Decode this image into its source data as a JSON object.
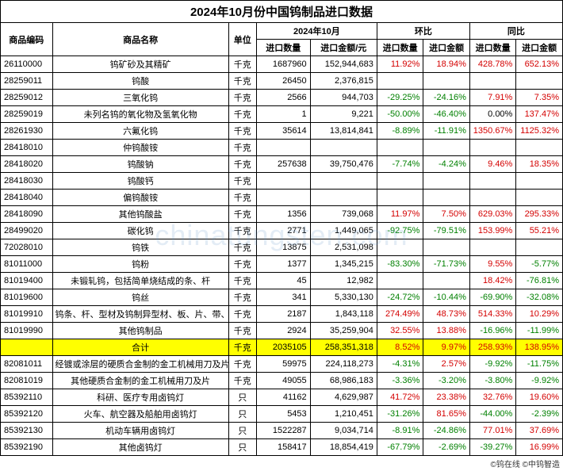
{
  "title": "2024年10月份中国钨制品进口数据",
  "watermark": "chinatungsten.com",
  "footer": "©钨在线 ©中钨智造",
  "headers": {
    "code": "商品编码",
    "name": "商品名称",
    "unit": "单位",
    "month": "2024年10月",
    "mom": "环比",
    "yoy": "同比",
    "qty": "进口数量",
    "amt": "进口金额/元",
    "qty2": "进口数量",
    "amt2": "进口金额",
    "qty3": "进口数量",
    "amt3": "进口金额"
  },
  "rows": [
    {
      "code": "26110000",
      "name": "钨矿砂及其精矿",
      "unit": "千克",
      "qty": "1687960",
      "amt": "152,944,683",
      "mq": "11.92%",
      "ma": "18.94%",
      "yq": "428.78%",
      "ya": "652.13%",
      "mqc": "red",
      "mac": "red",
      "yqc": "red",
      "yac": "red"
    },
    {
      "code": "28259011",
      "name": "钨酸",
      "unit": "千克",
      "qty": "26450",
      "amt": "2,376,815",
      "mq": "",
      "ma": "",
      "yq": "",
      "ya": ""
    },
    {
      "code": "28259012",
      "name": "三氧化钨",
      "unit": "千克",
      "qty": "2566",
      "amt": "944,703",
      "mq": "-29.25%",
      "ma": "-24.16%",
      "yq": "7.91%",
      "ya": "7.35%",
      "mqc": "green",
      "mac": "green",
      "yqc": "red",
      "yac": "red"
    },
    {
      "code": "28259019",
      "name": "未列名钨的氧化物及氢氧化物",
      "unit": "千克",
      "qty": "1",
      "amt": "9,221",
      "mq": "-50.00%",
      "ma": "-46.40%",
      "yq": "0.00%",
      "ya": "137.47%",
      "mqc": "green",
      "mac": "green",
      "yqc": "",
      "yac": "red"
    },
    {
      "code": "28261930",
      "name": "六氟化钨",
      "unit": "千克",
      "qty": "35614",
      "amt": "13,814,841",
      "mq": "-8.89%",
      "ma": "-11.91%",
      "yq": "1350.67%",
      "ya": "1125.32%",
      "mqc": "green",
      "mac": "green",
      "yqc": "red",
      "yac": "red"
    },
    {
      "code": "28418010",
      "name": "仲钨酸铵",
      "unit": "千克",
      "qty": "",
      "amt": "",
      "mq": "",
      "ma": "",
      "yq": "",
      "ya": ""
    },
    {
      "code": "28418020",
      "name": "钨酸钠",
      "unit": "千克",
      "qty": "257638",
      "amt": "39,750,476",
      "mq": "-7.74%",
      "ma": "-4.24%",
      "yq": "9.46%",
      "ya": "18.35%",
      "mqc": "green",
      "mac": "green",
      "yqc": "red",
      "yac": "red"
    },
    {
      "code": "28418030",
      "name": "钨酸钙",
      "unit": "千克",
      "qty": "",
      "amt": "",
      "mq": "",
      "ma": "",
      "yq": "",
      "ya": ""
    },
    {
      "code": "28418040",
      "name": "偏钨酸铵",
      "unit": "千克",
      "qty": "",
      "amt": "",
      "mq": "",
      "ma": "",
      "yq": "",
      "ya": ""
    },
    {
      "code": "28418090",
      "name": "其他钨酸盐",
      "unit": "千克",
      "qty": "1356",
      "amt": "739,068",
      "mq": "11.97%",
      "ma": "7.50%",
      "yq": "629.03%",
      "ya": "295.33%",
      "mqc": "red",
      "mac": "red",
      "yqc": "red",
      "yac": "red"
    },
    {
      "code": "28499020",
      "name": "碳化钨",
      "unit": "千克",
      "qty": "2771",
      "amt": "1,449,065",
      "mq": "-92.75%",
      "ma": "-79.51%",
      "yq": "153.99%",
      "ya": "55.21%",
      "mqc": "green",
      "mac": "green",
      "yqc": "red",
      "yac": "red"
    },
    {
      "code": "72028010",
      "name": "钨铁",
      "unit": "千克",
      "qty": "13875",
      "amt": "2,531,098",
      "mq": "",
      "ma": "",
      "yq": "",
      "ya": ""
    },
    {
      "code": "81011000",
      "name": "钨粉",
      "unit": "千克",
      "qty": "1377",
      "amt": "1,345,215",
      "mq": "-83.30%",
      "ma": "-71.73%",
      "yq": "9.55%",
      "ya": "-5.77%",
      "mqc": "green",
      "mac": "green",
      "yqc": "red",
      "yac": "green"
    },
    {
      "code": "81019400",
      "name": "未锻轧钨，包括简单烧结成的条、杆",
      "unit": "千克",
      "qty": "45",
      "amt": "12,982",
      "mq": "",
      "ma": "",
      "yq": "18.42%",
      "ya": "-76.81%",
      "yqc": "red",
      "yac": "green"
    },
    {
      "code": "81019600",
      "name": "钨丝",
      "unit": "千克",
      "qty": "341",
      "amt": "5,330,130",
      "mq": "-24.72%",
      "ma": "-10.44%",
      "yq": "-69.90%",
      "ya": "-32.08%",
      "mqc": "green",
      "mac": "green",
      "yqc": "green",
      "yac": "green"
    },
    {
      "code": "81019910",
      "name": "钨条、杆、型材及钨制异型材、板、片、带、箔",
      "unit": "千克",
      "qty": "2187",
      "amt": "1,843,118",
      "mq": "274.49%",
      "ma": "48.73%",
      "yq": "514.33%",
      "ya": "10.29%",
      "mqc": "red",
      "mac": "red",
      "yqc": "red",
      "yac": "red"
    },
    {
      "code": "81019990",
      "name": "其他钨制品",
      "unit": "千克",
      "qty": "2924",
      "amt": "35,259,904",
      "mq": "32.55%",
      "ma": "13.88%",
      "yq": "-16.96%",
      "ya": "-11.99%",
      "mqc": "red",
      "mac": "red",
      "yqc": "green",
      "yac": "green"
    },
    {
      "code": "",
      "name": "合计",
      "unit": "千克",
      "qty": "2035105",
      "amt": "258,351,318",
      "mq": "8.52%",
      "ma": "9.97%",
      "yq": "258.93%",
      "ya": "138.95%",
      "mqc": "red",
      "mac": "red",
      "yqc": "red",
      "yac": "red",
      "hl": true
    },
    {
      "code": "82081011",
      "name": "经镀或涂层的硬质合金制的金工机械用刀及片",
      "unit": "千克",
      "qty": "59975",
      "amt": "224,118,273",
      "mq": "-4.31%",
      "ma": "2.57%",
      "yq": "-9.92%",
      "ya": "-11.75%",
      "mqc": "green",
      "mac": "red",
      "yqc": "green",
      "yac": "green"
    },
    {
      "code": "82081019",
      "name": "其他硬质合金制的金工机械用刀及片",
      "unit": "千克",
      "qty": "49055",
      "amt": "68,986,183",
      "mq": "-3.36%",
      "ma": "-3.20%",
      "yq": "-3.80%",
      "ya": "-9.92%",
      "mqc": "green",
      "mac": "green",
      "yqc": "green",
      "yac": "green"
    },
    {
      "code": "85392110",
      "name": "科研、医疗专用卤钨灯",
      "unit": "只",
      "qty": "41162",
      "amt": "4,629,987",
      "mq": "41.72%",
      "ma": "23.38%",
      "yq": "32.76%",
      "ya": "19.60%",
      "mqc": "red",
      "mac": "red",
      "yqc": "red",
      "yac": "red"
    },
    {
      "code": "85392120",
      "name": "火车、航空器及船舶用卤钨灯",
      "unit": "只",
      "qty": "5453",
      "amt": "1,210,451",
      "mq": "-31.26%",
      "ma": "81.65%",
      "yq": "-44.00%",
      "ya": "-2.39%",
      "mqc": "green",
      "mac": "red",
      "yqc": "green",
      "yac": "green"
    },
    {
      "code": "85392130",
      "name": "机动车辆用卤钨灯",
      "unit": "只",
      "qty": "1522287",
      "amt": "9,034,714",
      "mq": "-8.91%",
      "ma": "-24.86%",
      "yq": "77.01%",
      "ya": "37.69%",
      "mqc": "green",
      "mac": "green",
      "yqc": "red",
      "yac": "red"
    },
    {
      "code": "85392190",
      "name": "其他卤钨灯",
      "unit": "只",
      "qty": "158417",
      "amt": "18,854,419",
      "mq": "-67.79%",
      "ma": "-2.69%",
      "yq": "-39.27%",
      "ya": "16.99%",
      "mqc": "green",
      "mac": "green",
      "yqc": "green",
      "yac": "red"
    }
  ]
}
